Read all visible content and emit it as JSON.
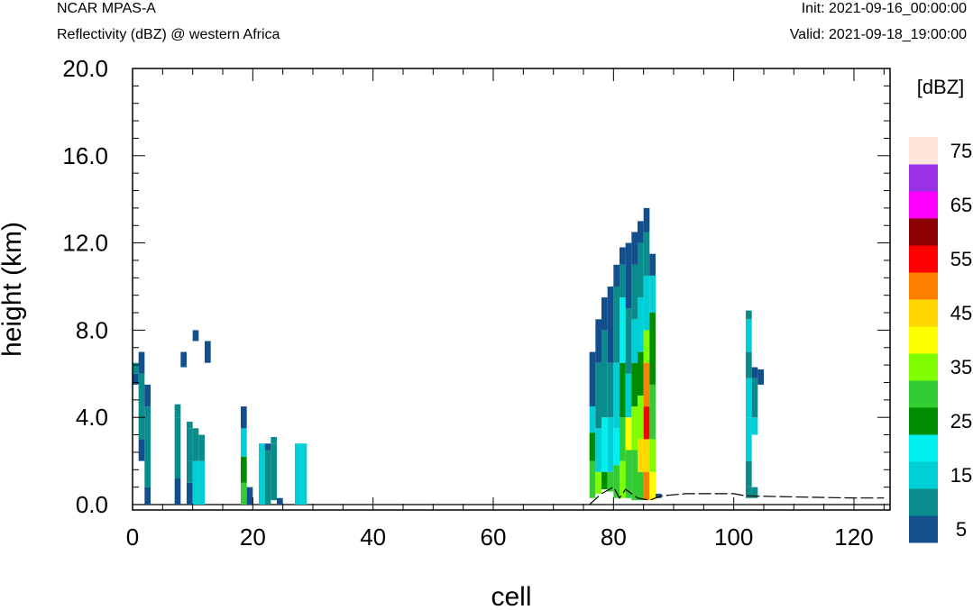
{
  "header": {
    "model": "NCAR MPAS-A",
    "description": "Reflectivity (dBZ) @ western Africa",
    "init": "Init: 2021-09-16_00:00:00",
    "valid": "Valid: 2021-09-18_19:00:00"
  },
  "chart_data": {
    "type": "heatmap",
    "title": "Reflectivity (dBZ) @ western Africa",
    "xlabel": "cell",
    "ylabel": "height (km)",
    "xlim": [
      0,
      126
    ],
    "ylim": [
      0,
      20
    ],
    "x_ticks": [
      "0",
      "20",
      "40",
      "60",
      "80",
      "100",
      "120"
    ],
    "y_ticks": [
      "0.0",
      "4.0",
      "8.0",
      "12.0",
      "16.0",
      "20.0"
    ],
    "colorbar": {
      "units": "[dBZ]",
      "levels": [
        5,
        10,
        15,
        20,
        25,
        30,
        35,
        40,
        45,
        50,
        55,
        60,
        65,
        70,
        75
      ],
      "labels": [
        "5",
        "15",
        "25",
        "35",
        "45",
        "55",
        "65",
        "75"
      ],
      "colors": [
        "#134f8c",
        "#0a8c8c",
        "#00cfd6",
        "#00f0f0",
        "#008c00",
        "#33cc33",
        "#80ff00",
        "#ffff00",
        "#ffd700",
        "#ff8000",
        "#ff0000",
        "#8b0000",
        "#ff00ff",
        "#9932e6",
        "#ffe4dc"
      ]
    },
    "columns": [
      {
        "x": 0,
        "bins": [
          [
            5.5,
            6.0,
            5
          ],
          [
            6.0,
            6.5,
            10
          ]
        ]
      },
      {
        "x": 1,
        "bins": [
          [
            2.0,
            3.0,
            5
          ],
          [
            3.0,
            4.5,
            10
          ],
          [
            4.5,
            6.0,
            10
          ],
          [
            6.0,
            7.0,
            5
          ]
        ]
      },
      {
        "x": 2,
        "bins": [
          [
            0.0,
            0.8,
            5
          ],
          [
            0.8,
            4.5,
            10
          ],
          [
            4.5,
            5.5,
            5
          ]
        ]
      },
      {
        "x": 7,
        "bins": [
          [
            0.0,
            1.2,
            5
          ],
          [
            1.2,
            4.0,
            10
          ],
          [
            4.0,
            4.6,
            10
          ]
        ]
      },
      {
        "x": 8,
        "bins": [
          [
            6.3,
            7.0,
            5
          ]
        ]
      },
      {
        "x": 9,
        "bins": [
          [
            0.0,
            1.0,
            5
          ],
          [
            1.0,
            2.0,
            10
          ],
          [
            2.0,
            3.5,
            10
          ],
          [
            3.5,
            3.8,
            10
          ]
        ]
      },
      {
        "x": 10,
        "bins": [
          [
            0.0,
            2.0,
            15
          ],
          [
            2.0,
            3.5,
            10
          ],
          [
            7.5,
            8.0,
            5
          ]
        ]
      },
      {
        "x": 11,
        "bins": [
          [
            0.0,
            2.0,
            15
          ],
          [
            2.0,
            3.2,
            10
          ]
        ]
      },
      {
        "x": 12,
        "bins": [
          [
            6.5,
            7.5,
            5
          ]
        ]
      },
      {
        "x": 18,
        "bins": [
          [
            0.0,
            1.0,
            30
          ],
          [
            1.0,
            2.2,
            25
          ],
          [
            2.2,
            3.5,
            15
          ],
          [
            3.5,
            4.5,
            5
          ]
        ]
      },
      {
        "x": 19,
        "bins": [
          [
            0.0,
            0.8,
            5
          ]
        ]
      },
      {
        "x": 21,
        "bins": [
          [
            0.0,
            2.8,
            15
          ]
        ]
      },
      {
        "x": 22,
        "bins": [
          [
            0.0,
            2.5,
            10
          ],
          [
            2.5,
            2.8,
            5
          ]
        ]
      },
      {
        "x": 23,
        "bins": [
          [
            0.2,
            2.8,
            10
          ],
          [
            2.8,
            3.1,
            10
          ]
        ]
      },
      {
        "x": 24,
        "bins": [
          [
            0.0,
            0.3,
            5
          ]
        ]
      },
      {
        "x": 27,
        "bins": [
          [
            0.0,
            2.8,
            15
          ]
        ]
      },
      {
        "x": 28,
        "bins": [
          [
            0.0,
            2.8,
            15
          ]
        ]
      },
      {
        "x": 76,
        "bins": [
          [
            0.3,
            2.0,
            30
          ],
          [
            2.0,
            3.3,
            25
          ],
          [
            3.3,
            4.5,
            15
          ],
          [
            4.5,
            7.0,
            5
          ]
        ]
      },
      {
        "x": 77,
        "bins": [
          [
            0.5,
            1.5,
            35
          ],
          [
            1.5,
            3.5,
            15
          ],
          [
            3.5,
            6.5,
            10
          ],
          [
            6.5,
            8.5,
            5
          ]
        ]
      },
      {
        "x": 78,
        "bins": [
          [
            0.7,
            1.5,
            25
          ],
          [
            1.5,
            4.0,
            20
          ],
          [
            4.0,
            8.0,
            10
          ],
          [
            8.0,
            9.5,
            5
          ]
        ]
      },
      {
        "x": 79,
        "bins": [
          [
            0.6,
            1.5,
            30
          ],
          [
            1.5,
            4.0,
            15
          ],
          [
            4.0,
            6.5,
            10
          ],
          [
            6.5,
            10.0,
            5
          ]
        ]
      },
      {
        "x": 80,
        "bins": [
          [
            0.3,
            1.8,
            30
          ],
          [
            1.8,
            3.5,
            20
          ],
          [
            3.5,
            6.5,
            15
          ],
          [
            6.5,
            10.0,
            10
          ],
          [
            10.0,
            11.0,
            5
          ]
        ]
      },
      {
        "x": 81,
        "bins": [
          [
            0.3,
            2.0,
            35
          ],
          [
            2.0,
            4.0,
            30
          ],
          [
            4.0,
            6.5,
            25
          ],
          [
            6.5,
            9.5,
            20
          ],
          [
            9.5,
            11.0,
            10
          ],
          [
            11.0,
            11.8,
            5
          ]
        ]
      },
      {
        "x": 82,
        "bins": [
          [
            0.3,
            2.5,
            30
          ],
          [
            2.5,
            4.0,
            40
          ],
          [
            4.0,
            6.0,
            15
          ],
          [
            6.0,
            9.0,
            10
          ],
          [
            9.0,
            12.0,
            5
          ]
        ]
      },
      {
        "x": 83,
        "bins": [
          [
            0.2,
            2.5,
            30
          ],
          [
            2.5,
            4.5,
            35
          ],
          [
            4.5,
            6.5,
            25
          ],
          [
            6.5,
            8.5,
            15
          ],
          [
            8.5,
            11.0,
            10
          ],
          [
            11.0,
            12.5,
            5
          ]
        ]
      },
      {
        "x": 84,
        "bins": [
          [
            0.2,
            1.5,
            30
          ],
          [
            1.5,
            3.0,
            45
          ],
          [
            3.0,
            5.0,
            35
          ],
          [
            5.0,
            7.0,
            25
          ],
          [
            7.0,
            9.5,
            15
          ],
          [
            9.5,
            12.0,
            10
          ],
          [
            12.0,
            13.0,
            5
          ]
        ]
      },
      {
        "x": 85,
        "bins": [
          [
            0.2,
            1.5,
            50
          ],
          [
            1.5,
            3.0,
            45
          ],
          [
            3.0,
            4.5,
            55
          ],
          [
            4.5,
            6.5,
            50
          ],
          [
            6.5,
            8.0,
            35
          ],
          [
            8.0,
            10.5,
            15
          ],
          [
            10.5,
            12.5,
            10
          ],
          [
            12.5,
            13.6,
            5
          ]
        ]
      },
      {
        "x": 86,
        "bins": [
          [
            0.2,
            1.5,
            40
          ],
          [
            1.5,
            3.0,
            35
          ],
          [
            3.0,
            5.5,
            30
          ],
          [
            5.5,
            8.8,
            25
          ],
          [
            8.8,
            10.5,
            15
          ],
          [
            10.5,
            11.5,
            5
          ]
        ]
      },
      {
        "x": 87,
        "bins": [
          [
            0.3,
            0.5,
            5
          ]
        ]
      },
      {
        "x": 102,
        "bins": [
          [
            0.3,
            0.8,
            10
          ],
          [
            0.8,
            2.0,
            10
          ],
          [
            2.0,
            4.0,
            15
          ],
          [
            4.0,
            5.8,
            15
          ],
          [
            5.8,
            7.0,
            10
          ],
          [
            7.0,
            8.5,
            15
          ],
          [
            8.5,
            8.9,
            10
          ]
        ]
      },
      {
        "x": 103,
        "bins": [
          [
            0.3,
            0.8,
            10
          ],
          [
            3.2,
            4.0,
            15
          ],
          [
            4.0,
            5.8,
            10
          ],
          [
            5.8,
            6.3,
            5
          ]
        ]
      },
      {
        "x": 104,
        "bins": [
          [
            5.5,
            6.2,
            5
          ]
        ]
      }
    ],
    "terrain": [
      [
        76,
        0.0
      ],
      [
        78,
        0.5
      ],
      [
        80,
        0.8
      ],
      [
        81,
        0.3
      ],
      [
        82,
        0.7
      ],
      [
        84,
        0.3
      ],
      [
        86,
        0.2
      ],
      [
        88,
        0.4
      ],
      [
        92,
        0.5
      ],
      [
        96,
        0.5
      ],
      [
        100,
        0.5
      ],
      [
        102,
        0.4
      ],
      [
        110,
        0.35
      ],
      [
        120,
        0.3
      ],
      [
        125,
        0.3
      ]
    ]
  }
}
